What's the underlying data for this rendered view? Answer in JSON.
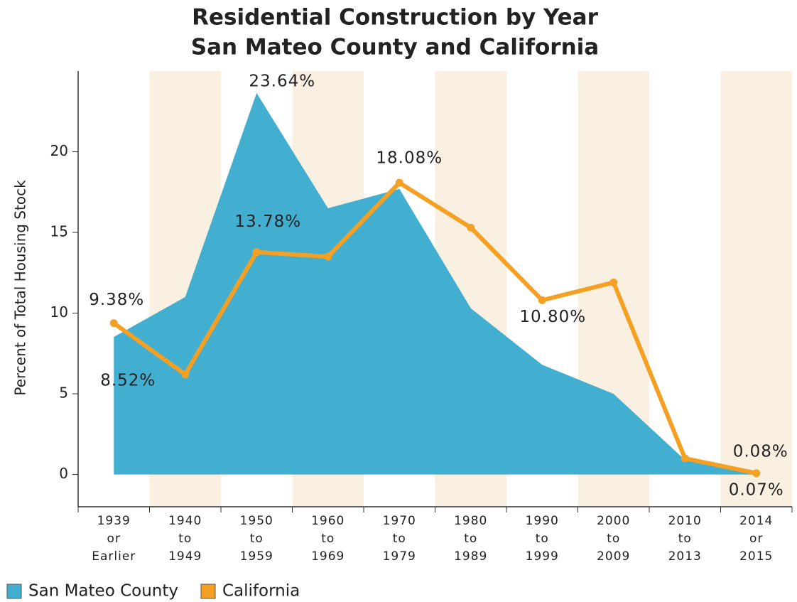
{
  "chart_data": {
    "type": "area-line",
    "title": "Residential Construction by Year",
    "subtitle": "San Mateo County and California",
    "y_label": "Percent of Total Housing Stock",
    "categories": [
      [
        "1939",
        "or",
        "Earlier"
      ],
      [
        "1940",
        "to",
        "1949"
      ],
      [
        "1950",
        "to",
        "1959"
      ],
      [
        "1960",
        "to",
        "1969"
      ],
      [
        "1970",
        "to",
        "1979"
      ],
      [
        "1980",
        "to",
        "1989"
      ],
      [
        "1990",
        "to",
        "1999"
      ],
      [
        "2000",
        "to",
        "2009"
      ],
      [
        "2010",
        "to",
        "2013"
      ],
      [
        "2014",
        "or",
        "2015"
      ]
    ],
    "series": [
      {
        "name": "San Mateo County",
        "kind": "area",
        "color": "#42afd1",
        "values": [
          8.52,
          11.0,
          23.64,
          16.5,
          17.7,
          10.3,
          6.8,
          5.0,
          0.9,
          0.07
        ],
        "value_labels": [
          "8.52%",
          null,
          "23.64%",
          null,
          null,
          null,
          null,
          null,
          null,
          "0.07%"
        ]
      },
      {
        "name": "California",
        "kind": "line",
        "color": "#f5a023",
        "values": [
          9.38,
          6.2,
          13.78,
          13.5,
          18.08,
          15.3,
          10.8,
          11.9,
          1.0,
          0.08
        ],
        "value_labels": [
          "9.38%",
          null,
          "13.78%",
          null,
          "18.08%",
          null,
          "10.80%",
          null,
          null,
          "0.08%"
        ]
      }
    ],
    "ylim": [
      -2,
      25
    ],
    "yticks": [
      0,
      5,
      10,
      15,
      20
    ],
    "band_color": "#faf0e2",
    "legend": "bottom-left"
  }
}
